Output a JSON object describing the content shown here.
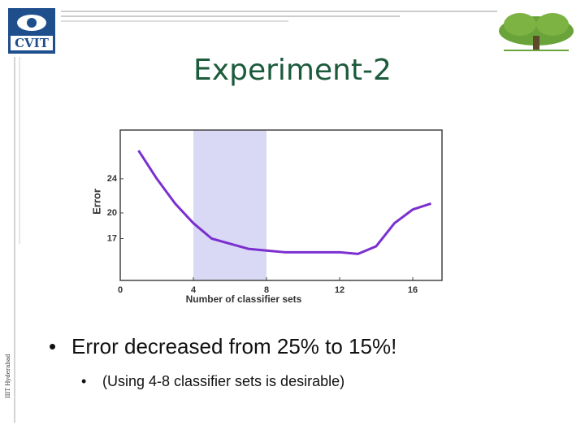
{
  "header": {
    "logo": "CVIT",
    "side_text": "IIIT Hyderabad"
  },
  "chart_data": {
    "type": "line",
    "title": "Experiment-2",
    "x_label": "Number of classifier sets",
    "y_label": "Error",
    "x": [
      1,
      2,
      3,
      4,
      5,
      6,
      7,
      8,
      9,
      10,
      11,
      12,
      13,
      14,
      15,
      16,
      17
    ],
    "values": [
      27.3,
      24.0,
      21.1,
      18.8,
      17.0,
      16.4,
      15.8,
      15.6,
      15.4,
      15.4,
      15.4,
      15.4,
      15.2,
      16.1,
      18.8,
      20.4,
      21.1
    ],
    "color": "#7b2fd0",
    "highlight": {
      "from": 4,
      "to": 8,
      "color": "#d9d9f5"
    },
    "xlim": [
      0,
      17.6
    ],
    "ylim": [
      12.1,
      29.7
    ],
    "xticks": [
      0,
      4,
      8,
      12,
      16
    ],
    "yticks": [
      17,
      20,
      24
    ]
  },
  "bullets": [
    "Error decreased from 25% to 15%!"
  ],
  "sub_bullets": [
    "(Using 4-8 classifier sets is desirable)"
  ]
}
